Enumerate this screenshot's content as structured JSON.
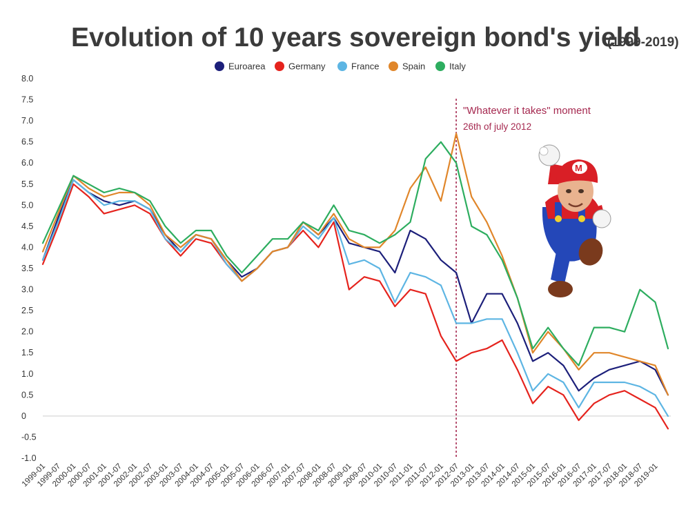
{
  "chart_data": {
    "type": "line",
    "title": "Evolution of 10 years sovereign bond's yield",
    "subtitle": "(1999-2019)",
    "xlabel": "",
    "ylabel": "",
    "ylim": [
      -1.0,
      8.0
    ],
    "y_ticks": [
      "8.0",
      "7.5",
      "7.0",
      "6.5",
      "6.0",
      "5.5",
      "5.0",
      "4.5",
      "4.0",
      "3.5",
      "3.0",
      "2.5",
      "2.0",
      "1.5",
      "1.0",
      "0.5",
      "0",
      "-0.5",
      "-1.0"
    ],
    "x_ticks": [
      "1999-01",
      "1999-07",
      "2000-01",
      "2000-07",
      "2001-01",
      "2001-07",
      "2002-01",
      "2002-07",
      "2003-01",
      "2003-07",
      "2004-01",
      "2004-07",
      "2005-01",
      "2005-07",
      "2006-01",
      "2006-07",
      "2007-01",
      "2007-07",
      "2008-01",
      "2008-07",
      "2009-01",
      "2009-07",
      "2010-01",
      "2010-07",
      "2011-01",
      "2011-07",
      "2012-01",
      "2012-07",
      "2013-01",
      "2013-07",
      "2014-01",
      "2014-07",
      "2015-01",
      "2015-07",
      "2016-01",
      "2016-07",
      "2017-01",
      "2017-07",
      "2018-01",
      "2018-07",
      "2019-01"
    ],
    "x_range": [
      "1999-01",
      "2019-06"
    ],
    "grid": false,
    "legend_position": "top-center",
    "series": [
      {
        "name": "Euroarea",
        "color": "#1c1f7a",
        "x": [
          "1999-01",
          "1999-07",
          "2000-01",
          "2000-07",
          "2001-01",
          "2001-07",
          "2002-01",
          "2002-07",
          "2003-01",
          "2003-07",
          "2004-01",
          "2004-07",
          "2005-01",
          "2005-07",
          "2006-01",
          "2006-07",
          "2007-01",
          "2007-07",
          "2008-01",
          "2008-07",
          "2009-01",
          "2009-07",
          "2010-01",
          "2010-07",
          "2011-01",
          "2011-07",
          "2012-01",
          "2012-07",
          "2013-01",
          "2013-07",
          "2014-01",
          "2014-07",
          "2015-01",
          "2015-07",
          "2016-01",
          "2016-07",
          "2017-01",
          "2017-07",
          "2018-01",
          "2018-07",
          "2019-01",
          "2019-06"
        ],
        "values": [
          3.7,
          4.7,
          5.6,
          5.3,
          5.1,
          5.0,
          5.1,
          4.9,
          4.3,
          3.9,
          4.3,
          4.2,
          3.7,
          3.3,
          3.5,
          3.9,
          4.0,
          4.6,
          4.3,
          4.7,
          4.1,
          4.0,
          3.9,
          3.4,
          4.4,
          4.2,
          3.7,
          3.4,
          2.2,
          2.9,
          2.9,
          2.2,
          1.3,
          1.5,
          1.2,
          0.6,
          0.9,
          1.1,
          1.2,
          1.3,
          1.1,
          0.5
        ]
      },
      {
        "name": "Germany",
        "color": "#e5231d",
        "x": [
          "1999-01",
          "1999-07",
          "2000-01",
          "2000-07",
          "2001-01",
          "2001-07",
          "2002-01",
          "2002-07",
          "2003-01",
          "2003-07",
          "2004-01",
          "2004-07",
          "2005-01",
          "2005-07",
          "2006-01",
          "2006-07",
          "2007-01",
          "2007-07",
          "2008-01",
          "2008-07",
          "2009-01",
          "2009-07",
          "2010-01",
          "2010-07",
          "2011-01",
          "2011-07",
          "2012-01",
          "2012-07",
          "2013-01",
          "2013-07",
          "2014-01",
          "2014-07",
          "2015-01",
          "2015-07",
          "2016-01",
          "2016-07",
          "2017-01",
          "2017-07",
          "2018-01",
          "2018-07",
          "2019-01",
          "2019-06"
        ],
        "values": [
          3.6,
          4.5,
          5.5,
          5.2,
          4.8,
          4.9,
          5.0,
          4.8,
          4.2,
          3.8,
          4.2,
          4.1,
          3.6,
          3.2,
          3.5,
          3.9,
          4.0,
          4.4,
          4.0,
          4.6,
          3.0,
          3.3,
          3.2,
          2.6,
          3.0,
          2.9,
          1.9,
          1.3,
          1.5,
          1.6,
          1.8,
          1.1,
          0.3,
          0.7,
          0.5,
          -0.1,
          0.3,
          0.5,
          0.6,
          0.4,
          0.2,
          -0.3
        ]
      },
      {
        "name": "France",
        "color": "#5db5e3",
        "x": [
          "1999-01",
          "1999-07",
          "2000-01",
          "2000-07",
          "2001-01",
          "2001-07",
          "2002-01",
          "2002-07",
          "2003-01",
          "2003-07",
          "2004-01",
          "2004-07",
          "2005-01",
          "2005-07",
          "2006-01",
          "2006-07",
          "2007-01",
          "2007-07",
          "2008-01",
          "2008-07",
          "2009-01",
          "2009-07",
          "2010-01",
          "2010-07",
          "2011-01",
          "2011-07",
          "2012-01",
          "2012-07",
          "2013-01",
          "2013-07",
          "2014-01",
          "2014-07",
          "2015-01",
          "2015-07",
          "2016-01",
          "2016-07",
          "2017-01",
          "2017-07",
          "2018-01",
          "2018-07",
          "2019-01",
          "2019-06"
        ],
        "values": [
          3.7,
          4.6,
          5.6,
          5.3,
          5.0,
          5.1,
          5.1,
          4.9,
          4.2,
          3.9,
          4.3,
          4.2,
          3.6,
          3.2,
          3.5,
          3.9,
          4.0,
          4.5,
          4.2,
          4.7,
          3.6,
          3.7,
          3.5,
          2.7,
          3.4,
          3.3,
          3.1,
          2.2,
          2.2,
          2.3,
          2.3,
          1.5,
          0.6,
          1.0,
          0.8,
          0.2,
          0.8,
          0.8,
          0.8,
          0.7,
          0.5,
          0.0
        ]
      },
      {
        "name": "Spain",
        "color": "#e0862a",
        "x": [
          "1999-01",
          "1999-07",
          "2000-01",
          "2000-07",
          "2001-01",
          "2001-07",
          "2002-01",
          "2002-07",
          "2003-01",
          "2003-07",
          "2004-01",
          "2004-07",
          "2005-01",
          "2005-07",
          "2006-01",
          "2006-07",
          "2007-01",
          "2007-07",
          "2008-01",
          "2008-07",
          "2009-01",
          "2009-07",
          "2010-01",
          "2010-07",
          "2011-01",
          "2011-07",
          "2012-01",
          "2012-07",
          "2013-01",
          "2013-07",
          "2014-01",
          "2014-07",
          "2015-01",
          "2015-07",
          "2016-01",
          "2016-07",
          "2017-01",
          "2017-07",
          "2018-01",
          "2018-07",
          "2019-01",
          "2019-06"
        ],
        "values": [
          3.9,
          4.8,
          5.7,
          5.4,
          5.2,
          5.3,
          5.3,
          5.0,
          4.3,
          4.0,
          4.3,
          4.2,
          3.7,
          3.2,
          3.5,
          3.9,
          4.0,
          4.6,
          4.3,
          4.8,
          4.2,
          4.0,
          4.0,
          4.4,
          5.4,
          5.9,
          5.1,
          6.7,
          5.2,
          4.6,
          3.8,
          2.8,
          1.5,
          2.0,
          1.6,
          1.1,
          1.5,
          1.5,
          1.4,
          1.3,
          1.2,
          0.5
        ]
      },
      {
        "name": "Italy",
        "color": "#2dad5f",
        "x": [
          "1999-01",
          "1999-07",
          "2000-01",
          "2000-07",
          "2001-01",
          "2001-07",
          "2002-01",
          "2002-07",
          "2003-01",
          "2003-07",
          "2004-01",
          "2004-07",
          "2005-01",
          "2005-07",
          "2006-01",
          "2006-07",
          "2007-01",
          "2007-07",
          "2008-01",
          "2008-07",
          "2009-01",
          "2009-07",
          "2010-01",
          "2010-07",
          "2011-01",
          "2011-07",
          "2012-01",
          "2012-07",
          "2013-01",
          "2013-07",
          "2014-01",
          "2014-07",
          "2015-01",
          "2015-07",
          "2016-01",
          "2016-07",
          "2017-01",
          "2017-07",
          "2018-01",
          "2018-07",
          "2019-01",
          "2019-06"
        ],
        "values": [
          4.1,
          4.9,
          5.7,
          5.5,
          5.3,
          5.4,
          5.3,
          5.1,
          4.5,
          4.1,
          4.4,
          4.4,
          3.8,
          3.4,
          3.8,
          4.2,
          4.2,
          4.6,
          4.4,
          5.0,
          4.4,
          4.3,
          4.1,
          4.3,
          4.6,
          6.1,
          6.5,
          6.0,
          4.5,
          4.3,
          3.7,
          2.8,
          1.6,
          2.1,
          1.6,
          1.2,
          2.1,
          2.1,
          2.0,
          3.0,
          2.7,
          1.6
        ]
      }
    ],
    "annotations": [
      {
        "x": "2012-07",
        "text": "\"Whatever it takes\" moment",
        "subtext": "26th of july 2012",
        "color": "#a5284f"
      }
    ]
  },
  "illustration": {
    "name": "mario-draghi-illustration"
  }
}
